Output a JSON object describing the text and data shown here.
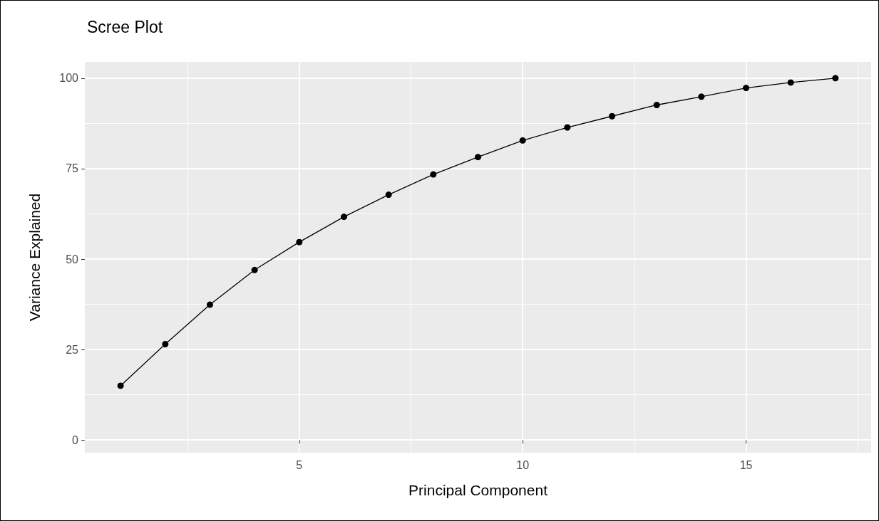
{
  "chart_data": {
    "type": "line",
    "title": "Scree Plot",
    "xlabel": "Principal Component",
    "ylabel": "Variance Explained",
    "x": [
      1,
      2,
      3,
      4,
      5,
      6,
      7,
      8,
      9,
      10,
      11,
      12,
      13,
      14,
      15,
      16,
      17
    ],
    "series": [
      {
        "color": "#000000",
        "values": [
          15.0,
          26.5,
          37.4,
          47.0,
          54.7,
          61.7,
          67.8,
          73.4,
          78.2,
          82.8,
          86.4,
          89.5,
          92.6,
          94.9,
          97.3,
          98.8,
          100.0
        ]
      }
    ],
    "xlim": [
      0.2,
      17.8
    ],
    "xticks": [
      5,
      10,
      15
    ],
    "ylim": [
      -3.5,
      104.5
    ],
    "yticks": [
      0,
      25,
      50,
      75,
      100
    ],
    "grid": true,
    "marker": "circle",
    "line_style": "solid"
  }
}
